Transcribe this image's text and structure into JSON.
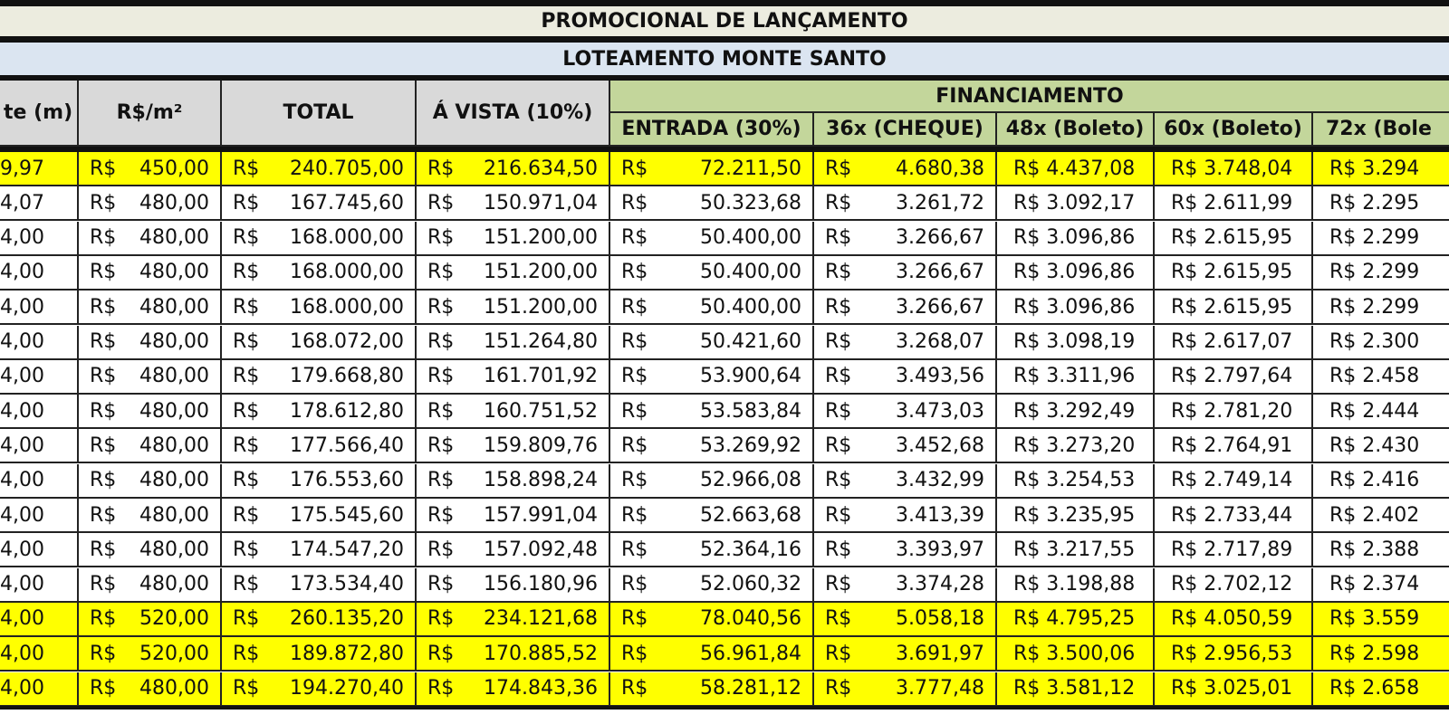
{
  "title": "PROMOCIONAL DE LANÇAMENTO",
  "subtitle": "LOTEAMENTO MONTE SANTO",
  "headers": {
    "frente": "te (m)",
    "rs_m2": "R$/m²",
    "total": "TOTAL",
    "avista": "Á VISTA (10%)",
    "financiamento": "FINANCIAMENTO",
    "entrada": "ENTRADA (30%)",
    "c36": "36x (CHEQUE)",
    "c48": "48x (Boleto)",
    "c60": "60x (Boleto)",
    "c72": "72x (Bole"
  },
  "currency": "R$",
  "rows": [
    {
      "highlight": true,
      "frente": "9,97",
      "m2": "450,00",
      "total": "240.705,00",
      "avista": "216.634,50",
      "entrada": "72.211,50",
      "c36": "4.680,38",
      "c48": "R$ 4.437,08",
      "c60": "R$ 3.748,04",
      "c72": "R$ 3.294"
    },
    {
      "highlight": false,
      "frente": "4,07",
      "m2": "480,00",
      "total": "167.745,60",
      "avista": "150.971,04",
      "entrada": "50.323,68",
      "c36": "3.261,72",
      "c48": "R$ 3.092,17",
      "c60": "R$ 2.611,99",
      "c72": "R$ 2.295"
    },
    {
      "highlight": false,
      "frente": "4,00",
      "m2": "480,00",
      "total": "168.000,00",
      "avista": "151.200,00",
      "entrada": "50.400,00",
      "c36": "3.266,67",
      "c48": "R$ 3.096,86",
      "c60": "R$ 2.615,95",
      "c72": "R$ 2.299"
    },
    {
      "highlight": false,
      "frente": "4,00",
      "m2": "480,00",
      "total": "168.000,00",
      "avista": "151.200,00",
      "entrada": "50.400,00",
      "c36": "3.266,67",
      "c48": "R$ 3.096,86",
      "c60": "R$ 2.615,95",
      "c72": "R$ 2.299"
    },
    {
      "highlight": false,
      "frente": "4,00",
      "m2": "480,00",
      "total": "168.000,00",
      "avista": "151.200,00",
      "entrada": "50.400,00",
      "c36": "3.266,67",
      "c48": "R$ 3.096,86",
      "c60": "R$ 2.615,95",
      "c72": "R$ 2.299"
    },
    {
      "highlight": false,
      "frente": "4,00",
      "m2": "480,00",
      "total": "168.072,00",
      "avista": "151.264,80",
      "entrada": "50.421,60",
      "c36": "3.268,07",
      "c48": "R$ 3.098,19",
      "c60": "R$ 2.617,07",
      "c72": "R$ 2.300"
    },
    {
      "highlight": false,
      "frente": "4,00",
      "m2": "480,00",
      "total": "179.668,80",
      "avista": "161.701,92",
      "entrada": "53.900,64",
      "c36": "3.493,56",
      "c48": "R$ 3.311,96",
      "c60": "R$ 2.797,64",
      "c72": "R$ 2.458"
    },
    {
      "highlight": false,
      "frente": "4,00",
      "m2": "480,00",
      "total": "178.612,80",
      "avista": "160.751,52",
      "entrada": "53.583,84",
      "c36": "3.473,03",
      "c48": "R$ 3.292,49",
      "c60": "R$ 2.781,20",
      "c72": "R$ 2.444"
    },
    {
      "highlight": false,
      "frente": "4,00",
      "m2": "480,00",
      "total": "177.566,40",
      "avista": "159.809,76",
      "entrada": "53.269,92",
      "c36": "3.452,68",
      "c48": "R$ 3.273,20",
      "c60": "R$ 2.764,91",
      "c72": "R$ 2.430"
    },
    {
      "highlight": false,
      "frente": "4,00",
      "m2": "480,00",
      "total": "176.553,60",
      "avista": "158.898,24",
      "entrada": "52.966,08",
      "c36": "3.432,99",
      "c48": "R$ 3.254,53",
      "c60": "R$ 2.749,14",
      "c72": "R$ 2.416"
    },
    {
      "highlight": false,
      "frente": "4,00",
      "m2": "480,00",
      "total": "175.545,60",
      "avista": "157.991,04",
      "entrada": "52.663,68",
      "c36": "3.413,39",
      "c48": "R$ 3.235,95",
      "c60": "R$ 2.733,44",
      "c72": "R$ 2.402"
    },
    {
      "highlight": false,
      "frente": "4,00",
      "m2": "480,00",
      "total": "174.547,20",
      "avista": "157.092,48",
      "entrada": "52.364,16",
      "c36": "3.393,97",
      "c48": "R$ 3.217,55",
      "c60": "R$ 2.717,89",
      "c72": "R$ 2.388"
    },
    {
      "highlight": false,
      "frente": "4,00",
      "m2": "480,00",
      "total": "173.534,40",
      "avista": "156.180,96",
      "entrada": "52.060,32",
      "c36": "3.374,28",
      "c48": "R$ 3.198,88",
      "c60": "R$ 2.702,12",
      "c72": "R$ 2.374"
    },
    {
      "highlight": true,
      "frente": "4,00",
      "m2": "520,00",
      "total": "260.135,20",
      "avista": "234.121,68",
      "entrada": "78.040,56",
      "c36": "5.058,18",
      "c48": "R$ 4.795,25",
      "c60": "R$ 4.050,59",
      "c72": "R$ 3.559"
    },
    {
      "highlight": true,
      "frente": "4,00",
      "m2": "520,00",
      "total": "189.872,80",
      "avista": "170.885,52",
      "entrada": "56.961,84",
      "c36": "3.691,97",
      "c48": "R$ 3.500,06",
      "c60": "R$ 2.956,53",
      "c72": "R$ 2.598"
    },
    {
      "highlight": true,
      "frente": "4,00",
      "m2": "480,00",
      "total": "194.270,40",
      "avista": "174.843,36",
      "entrada": "58.281,12",
      "c36": "3.777,48",
      "c48": "R$ 3.581,12",
      "c60": "R$ 3.025,01",
      "c72": "R$ 2.658"
    }
  ]
}
